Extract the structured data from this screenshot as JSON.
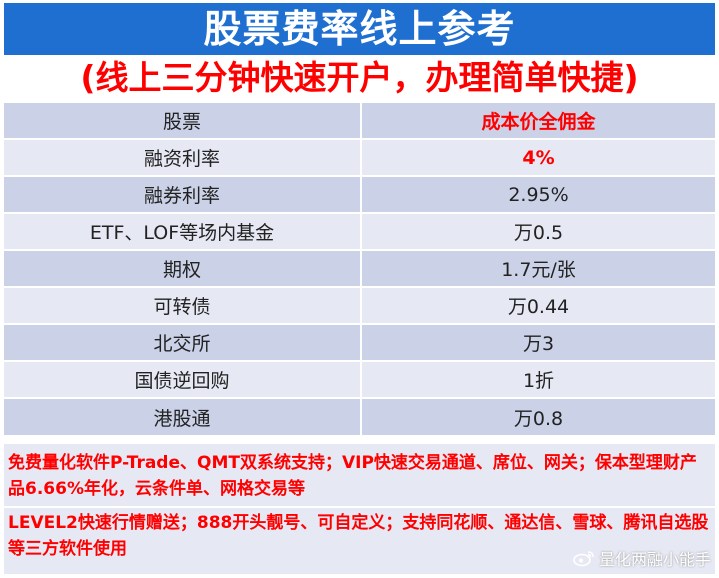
{
  "header": {
    "title": "股票费率线上参考",
    "subtitle": "(线上三分钟快速开户，办理简单快捷)"
  },
  "table": {
    "rows": [
      {
        "name": "股票",
        "value": "成本价全佣金",
        "highlight": true
      },
      {
        "name": "融资利率",
        "value": "4%",
        "highlight": true
      },
      {
        "name": "融券利率",
        "value": "2.95%",
        "highlight": false
      },
      {
        "name": "ETF、LOF等场内基金",
        "value": "万0.5",
        "highlight": false
      },
      {
        "name": "期权",
        "value": "1.7元/张",
        "highlight": false
      },
      {
        "name": "可转债",
        "value": "万0.44",
        "highlight": false
      },
      {
        "name": "北交所",
        "value": "万3",
        "highlight": false
      },
      {
        "name": "国债逆回购",
        "value": "1折",
        "highlight": false
      },
      {
        "name": "港股通",
        "value": "万0.8",
        "highlight": false
      }
    ]
  },
  "notes": {
    "note1": "免费量化软件P-Trade、QMT双系统支持；VIP快速交易通道、席位、网关；保本型理财产品6.66%年化，云条件单、网格交易等",
    "note2": "LEVEL2快速行情赠送；888开头靓号、可自定义；支持同花顺、通达信、雪球、腾讯自选股等三方软件使用"
  },
  "watermark": {
    "text": "量化两融小能手",
    "icon": "weibo-icon"
  },
  "colors": {
    "title_bg": "#1f6fd1",
    "accent_red": "#ff0000",
    "row_dark": "#cbd2e8",
    "row_light": "#e6e9f4"
  }
}
